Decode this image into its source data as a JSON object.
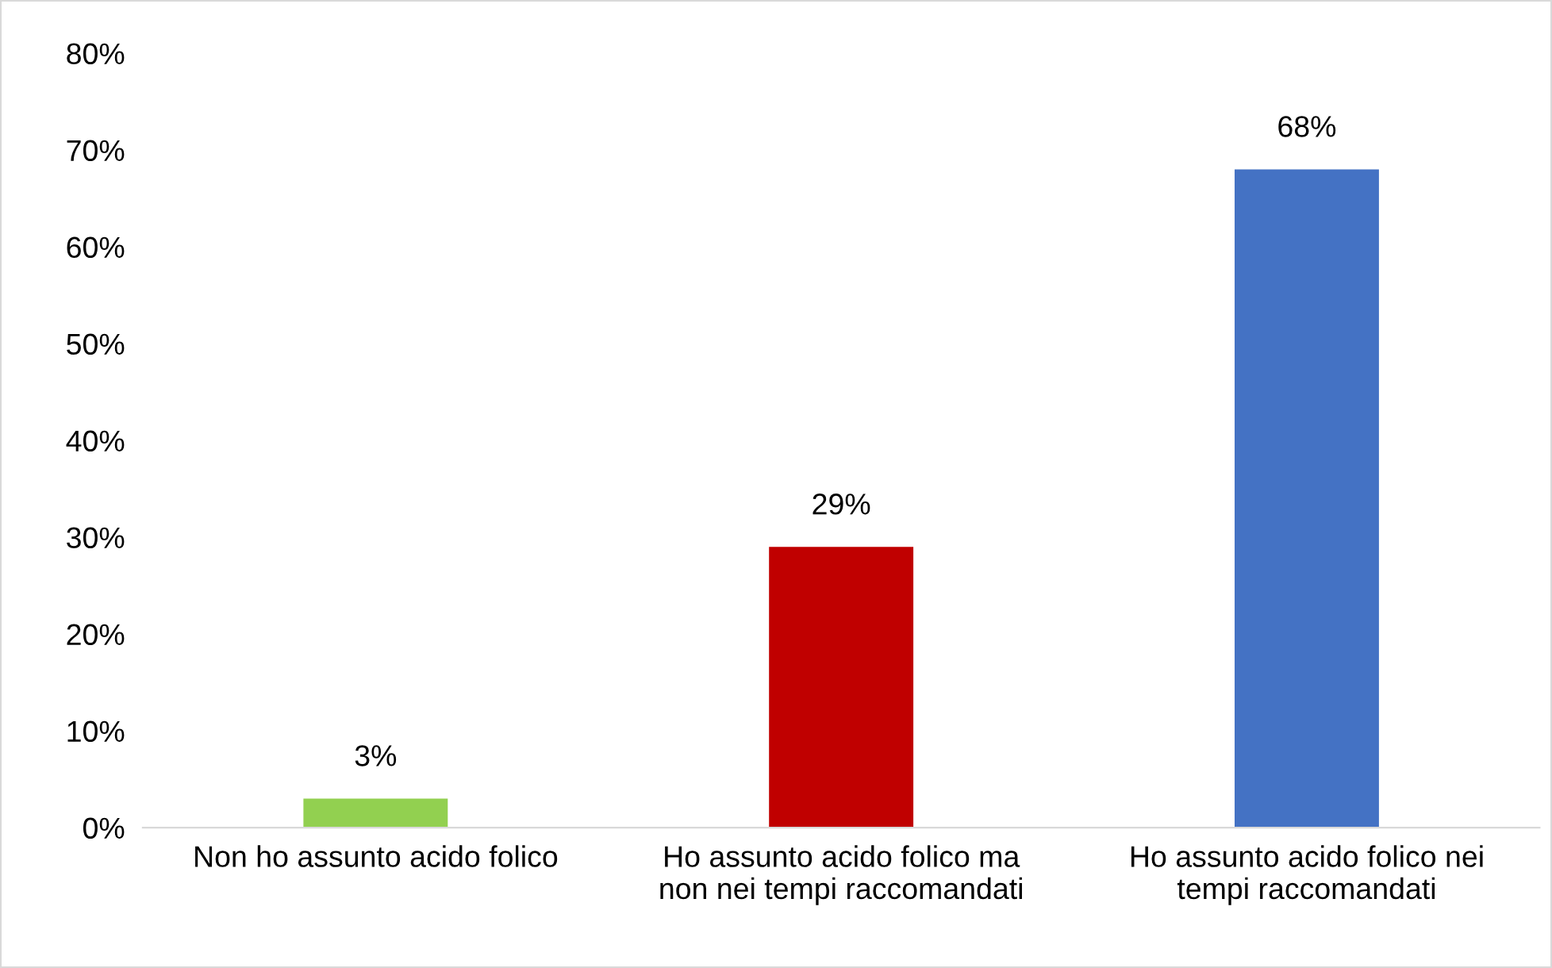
{
  "chart_data": {
    "type": "bar",
    "categories": [
      "Non ho assunto acido folico",
      "Ho assunto acido folico ma\nnon nei tempi raccomandati",
      "Ho assunto acido folico nei\ntempi raccomandati"
    ],
    "values": [
      3,
      29,
      68
    ],
    "colors": [
      "#92d050",
      "#c00000",
      "#4472c4"
    ],
    "value_labels": [
      "3%",
      "29%",
      "68%"
    ],
    "ylim": [
      0,
      80
    ],
    "yticks": [
      {
        "value": 0,
        "label": "0%"
      },
      {
        "value": 10,
        "label": "10%"
      },
      {
        "value": 20,
        "label": "20%"
      },
      {
        "value": 30,
        "label": "30%"
      },
      {
        "value": 40,
        "label": "40%"
      },
      {
        "value": 50,
        "label": "50%"
      },
      {
        "value": 60,
        "label": "60%"
      },
      {
        "value": 70,
        "label": "70%"
      },
      {
        "value": 80,
        "label": "80%"
      }
    ],
    "grid": false,
    "legend": false
  }
}
